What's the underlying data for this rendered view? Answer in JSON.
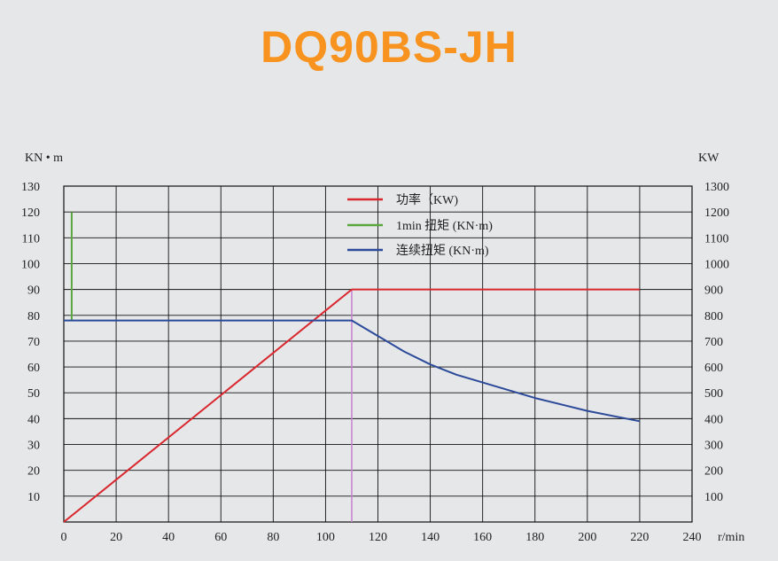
{
  "title": "DQ90BS-JH",
  "chart_data": {
    "type": "line",
    "title": "DQ90BS-JH",
    "left_axis_unit": "KN • m",
    "right_axis_unit": "KW",
    "x_unit": "r/min",
    "xlim": [
      0,
      240
    ],
    "ylim_left": [
      0,
      130
    ],
    "ylim_right": [
      0,
      1300
    ],
    "x_ticks": [
      "0",
      "20",
      "40",
      "60",
      "80",
      "100",
      "120",
      "140",
      "160",
      "180",
      "200",
      "220",
      "240"
    ],
    "y_left_ticks": [
      "10",
      "20",
      "30",
      "40",
      "50",
      "60",
      "70",
      "80",
      "90",
      "100",
      "110",
      "120",
      "130"
    ],
    "y_right_ticks": [
      "100",
      "200",
      "300",
      "400",
      "500",
      "600",
      "700",
      "800",
      "900",
      "1000",
      "1100",
      "1200",
      "1300"
    ],
    "grid": true,
    "legend_position": "top-center",
    "series": [
      {
        "name": "功率（KW)",
        "color": "#d9272e",
        "axis": "right",
        "x": [
          0,
          110,
          220
        ],
        "y": [
          0,
          900,
          900
        ]
      },
      {
        "name": "1min 扭矩 (KN·m)",
        "color": "#5aa641",
        "axis": "left",
        "x": [
          3,
          3
        ],
        "y": [
          78,
          120
        ]
      },
      {
        "name": "连续扭矩 (KN·m)",
        "color": "#2c4a9a",
        "axis": "left",
        "x": [
          0,
          110,
          120,
          130,
          140,
          150,
          160,
          180,
          200,
          220
        ],
        "y": [
          78,
          78,
          72,
          66,
          61,
          57,
          54,
          48,
          43,
          39
        ]
      }
    ],
    "reference_line": {
      "x": 110,
      "color": "#c77fcf"
    }
  }
}
